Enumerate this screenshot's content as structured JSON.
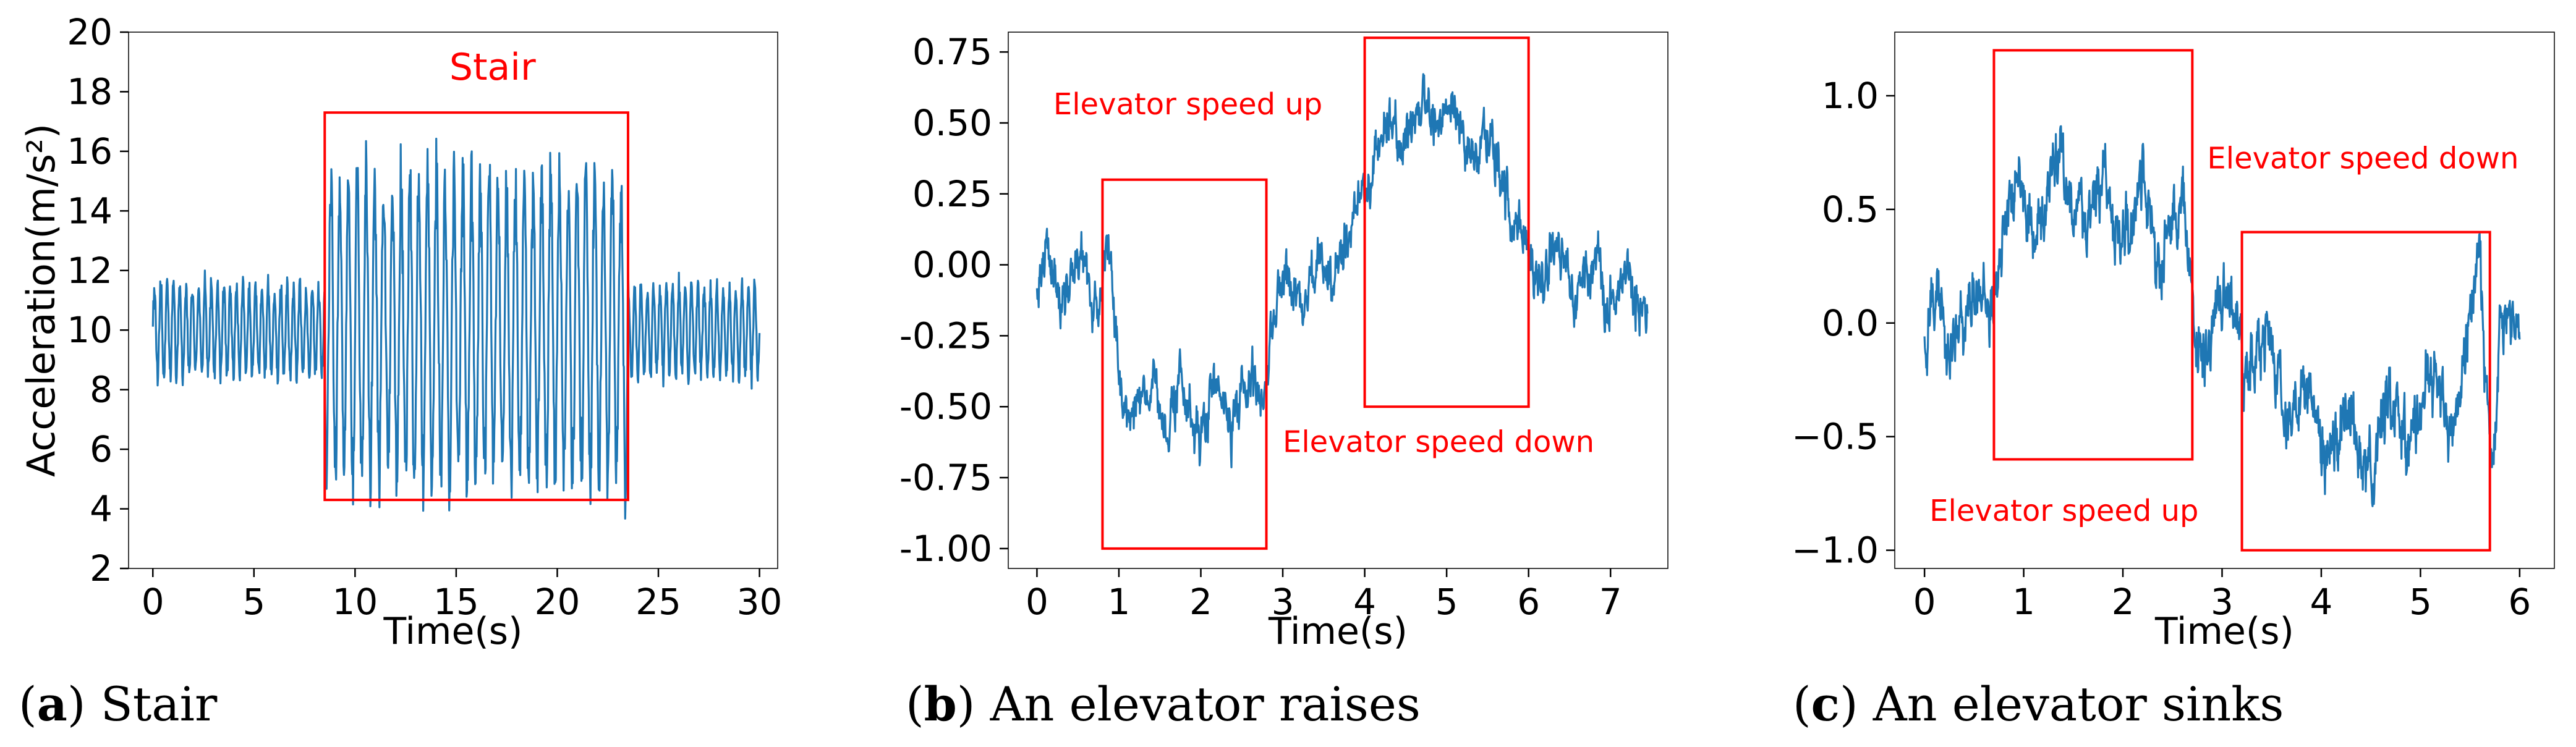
{
  "chart_data": [
    {
      "type": "line",
      "title": "",
      "xlabel": "Time(s)",
      "ylabel": "Acceleration(m/s²)",
      "xlim": [
        -1.2,
        30.9
      ],
      "ylim": [
        2,
        20
      ],
      "xticks": [
        "0",
        "5",
        "10",
        "15",
        "20",
        "25",
        "30"
      ],
      "yticks": [
        "2",
        "4",
        "6",
        "8",
        "10",
        "12",
        "14",
        "16",
        "18",
        "20"
      ],
      "grid": false,
      "series_color": "#1f77b4",
      "highlight_color": "#ff0000",
      "signal": {
        "t_start": 0,
        "t_end": 30,
        "base": 10,
        "segments": [
          {
            "t0": 0,
            "t1": 8.5,
            "amp": 1.6,
            "freq": 3.2
          },
          {
            "t0": 8.5,
            "t1": 23.5,
            "amp": 5.3,
            "freq": 2.3
          },
          {
            "t0": 23.5,
            "t1": 30,
            "amp": 1.6,
            "freq": 3.2
          }
        ]
      },
      "annotations": [
        {
          "kind": "box",
          "x0": 8.5,
          "x1": 23.5,
          "y0": 4.3,
          "y1": 17.3
        },
        {
          "kind": "text",
          "text": "Stair",
          "x": 16.8,
          "y": 18.4,
          "anchor": "middle"
        }
      ],
      "caption_letter": "a",
      "caption_text": "Stair"
    },
    {
      "type": "line",
      "title": "",
      "xlabel": "Time(s)",
      "ylabel": "",
      "xlim": [
        -0.35,
        7.7
      ],
      "ylim": [
        -1.07,
        0.82
      ],
      "xticks": [
        "0",
        "1",
        "2",
        "3",
        "4",
        "5",
        "6",
        "7"
      ],
      "yticks": [
        "-1.00",
        "-0.75",
        "-0.50",
        "-0.25",
        "0.00",
        "0.25",
        "0.50",
        "0.75"
      ],
      "grid": false,
      "series_color": "#1f77b4",
      "highlight_color": "#ff0000",
      "signal": {
        "t_start": 0,
        "t_end": 7.45,
        "profile": [
          [
            0,
            -0.05
          ],
          [
            0.75,
            -0.05
          ],
          [
            0.85,
            0.1
          ],
          [
            1.0,
            -0.45
          ],
          [
            2.0,
            -0.55
          ],
          [
            2.75,
            -0.45
          ],
          [
            2.9,
            -0.15
          ],
          [
            3.7,
            0.0
          ],
          [
            3.95,
            0.25
          ],
          [
            4.2,
            0.45
          ],
          [
            5.0,
            0.55
          ],
          [
            5.7,
            0.3
          ],
          [
            6.0,
            0.0
          ],
          [
            7.45,
            -0.1
          ]
        ],
        "noise": 0.12
      },
      "annotations": [
        {
          "kind": "box",
          "x0": 0.8,
          "x1": 2.8,
          "y0": -1.0,
          "y1": 0.3
        },
        {
          "kind": "box",
          "x0": 4.0,
          "x1": 6.0,
          "y0": -0.5,
          "y1": 0.8
        },
        {
          "kind": "text",
          "text": "Elevator speed up",
          "x": 0.2,
          "y": 0.53,
          "anchor": "start"
        },
        {
          "kind": "text",
          "text": "Elevator speed down",
          "x": 3.0,
          "y": -0.66,
          "anchor": "start"
        }
      ],
      "caption_letter": "b",
      "caption_text": "An elevator raises"
    },
    {
      "type": "line",
      "title": "",
      "xlabel": "Time(s)",
      "ylabel": "",
      "xlim": [
        -0.3,
        6.35
      ],
      "ylim": [
        -1.08,
        1.28
      ],
      "xticks": [
        "0",
        "1",
        "2",
        "3",
        "4",
        "5",
        "6"
      ],
      "yticks": [
        "−1.0",
        "−0.5",
        "0.0",
        "0.5",
        "1.0"
      ],
      "grid": false,
      "series_color": "#1f77b4",
      "highlight_color": "#ff0000",
      "signal": {
        "t_start": 0,
        "t_end": 6.0,
        "profile": [
          [
            0,
            -0.05
          ],
          [
            0.65,
            0.05
          ],
          [
            0.8,
            0.45
          ],
          [
            1.5,
            0.55
          ],
          [
            2.6,
            0.4
          ],
          [
            2.75,
            0.0
          ],
          [
            3.2,
            -0.05
          ],
          [
            3.8,
            -0.45
          ],
          [
            4.5,
            -0.55
          ],
          [
            5.4,
            -0.25
          ],
          [
            5.6,
            0.2
          ],
          [
            5.72,
            -0.55
          ],
          [
            5.8,
            0.05
          ],
          [
            6.0,
            -0.15
          ]
        ],
        "noise": 0.2
      },
      "annotations": [
        {
          "kind": "box",
          "x0": 0.7,
          "x1": 2.7,
          "y0": -0.6,
          "y1": 1.2
        },
        {
          "kind": "box",
          "x0": 3.2,
          "x1": 5.7,
          "y0": -1.0,
          "y1": 0.4
        },
        {
          "kind": "text",
          "text": "Elevator speed down",
          "x": 2.85,
          "y": 0.68,
          "anchor": "start"
        },
        {
          "kind": "text",
          "text": "Elevator speed up",
          "x": 0.05,
          "y": -0.87,
          "anchor": "start"
        }
      ],
      "caption_letter": "c",
      "caption_text": "An elevator sinks"
    }
  ]
}
